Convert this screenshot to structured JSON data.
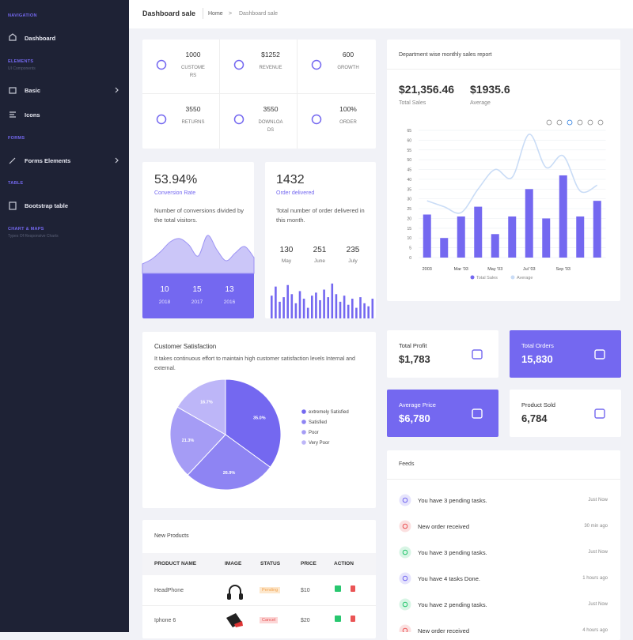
{
  "sidebar": {
    "navigation": "NAVIGATION",
    "dashboard": "Dashboard",
    "elements": "ELEMENTS",
    "elements_sub": "UI Components",
    "basic": "Basic",
    "icons": "Icons",
    "forms": "FORMS",
    "forms_elements": "Forms Elements",
    "table": "TABLE",
    "bootstrap_table": "Bootstrap table",
    "charts": "CHART & MAPS",
    "charts_sub": "Types Of Responsive Charts"
  },
  "header": {
    "title": "Dashboard sale",
    "breadcrumb": [
      "Home",
      ">",
      "Dashboard sale"
    ]
  },
  "stats": [
    {
      "value": 1000,
      "label": "CUSTOMERS"
    },
    {
      "value": "$1252",
      "label": "REVENUE"
    },
    {
      "value": 600,
      "label": "GROWTH"
    },
    {
      "value": 3550,
      "label": "RETURNS"
    },
    {
      "value": 3550,
      "label": "DOWNLOADS"
    },
    {
      "value": "100%",
      "label": "ORDER"
    }
  ],
  "conversion": {
    "value": "53.94%",
    "label": "Conversion Rate",
    "description": "Number of conversions divided by the total visitors.",
    "area": {
      "values": [
        12,
        18,
        28,
        40,
        44,
        36,
        22,
        48,
        30,
        16,
        26,
        34,
        20
      ],
      "ylim": [
        0,
        50
      ]
    },
    "years": [
      {
        "value": 10,
        "year": 2018
      },
      {
        "value": 15,
        "year": 2017
      },
      {
        "value": 13,
        "year": 2016
      }
    ]
  },
  "orders": {
    "value": 1432,
    "label": "Order delivered",
    "description": "Total number of order delivered in this month.",
    "months": [
      {
        "value": 130,
        "month": "May"
      },
      {
        "value": 251,
        "month": "June"
      },
      {
        "value": 235,
        "month": "July"
      }
    ],
    "bars": {
      "values": [
        30,
        42,
        22,
        28,
        44,
        32,
        20,
        36,
        26,
        14,
        30,
        34,
        24,
        38,
        28,
        46,
        32,
        22,
        30,
        18,
        26,
        14,
        28,
        20,
        16,
        26
      ],
      "ylim": [
        0,
        50
      ]
    }
  },
  "sales_chart": {
    "type": "bar",
    "title": "Department wise monthly sales report",
    "total": "$21,356.46",
    "total_label": "Total Sales",
    "average": "$1935.6",
    "average_label": "Average",
    "categories": [
      "2003",
      null,
      "Mar '03",
      null,
      "May '03",
      null,
      "Jul '03",
      null,
      "Sep '03",
      null,
      null
    ],
    "series": [
      {
        "name": "Total Sales",
        "type": "bar",
        "color": "#7468f0",
        "values": [
          22,
          10,
          21,
          26,
          12,
          21,
          35,
          20,
          42,
          21,
          29
        ]
      },
      {
        "name": "Average",
        "type": "line",
        "color": "#c9dcf6",
        "values": [
          29,
          26,
          23,
          35,
          45,
          41,
          63,
          46,
          52,
          34,
          37
        ]
      }
    ],
    "ylim": [
      0,
      65
    ],
    "yticks": [
      0,
      5,
      10,
      15,
      20,
      25,
      30,
      35,
      40,
      45,
      50,
      55,
      60,
      65
    ],
    "grid": true
  },
  "satisfaction": {
    "type": "pie",
    "title": "Customer Satisfaction",
    "subtitle": "It takes continuous effort to maintain high customer satisfaction levels Internal and external.",
    "categories": [
      "extremely Satisfied",
      "Satisfied",
      "Poor",
      "Very Poor"
    ],
    "values": [
      35,
      26.9,
      21.3,
      16.7
    ],
    "value_labels": [
      "35.0%",
      "26.9%",
      "21.3%",
      "16.7%"
    ],
    "colors": [
      "#7468f0",
      "#8e84f3",
      "#a59cf5",
      "#bdb6f8"
    ]
  },
  "cards": [
    {
      "title": "Total Profit",
      "value": "$1,783",
      "color": "#ffffff"
    },
    {
      "title": "Total Orders",
      "value": "15,830",
      "color": "#7468f0"
    },
    {
      "title": "Average Price",
      "value": "$6,780",
      "color": "#7468f0"
    },
    {
      "title": "Product Sold",
      "value": "6,784",
      "color": "#ffffff"
    }
  ],
  "feeds": {
    "title": "Feeds",
    "items": [
      {
        "text": "You have 3 pending tasks.",
        "time": "Just Now",
        "color": "#7468f0"
      },
      {
        "text": "New order received",
        "time": "30 min ago",
        "color": "#ea5455"
      },
      {
        "text": "You have 3 pending tasks.",
        "time": "Just Now",
        "color": "#28c76f"
      },
      {
        "text": "You have 4 tasks Done.",
        "time": "1 hours ago",
        "color": "#7468f0"
      },
      {
        "text": "You have 2 pending tasks.",
        "time": "Just Now",
        "color": "#28c76f"
      },
      {
        "text": "New order received",
        "time": "4 hours ago",
        "color": "#ea5455"
      }
    ]
  },
  "products": {
    "title": "New Products",
    "columns": [
      "PRODUCT NAME",
      "IMAGE",
      "STATUS",
      "PRICE",
      "ACTION"
    ],
    "rows": [
      [
        "HeadPhone",
        "Pending",
        "$10"
      ],
      [
        "Iphone 6",
        "Cancel",
        "$20"
      ]
    ]
  }
}
